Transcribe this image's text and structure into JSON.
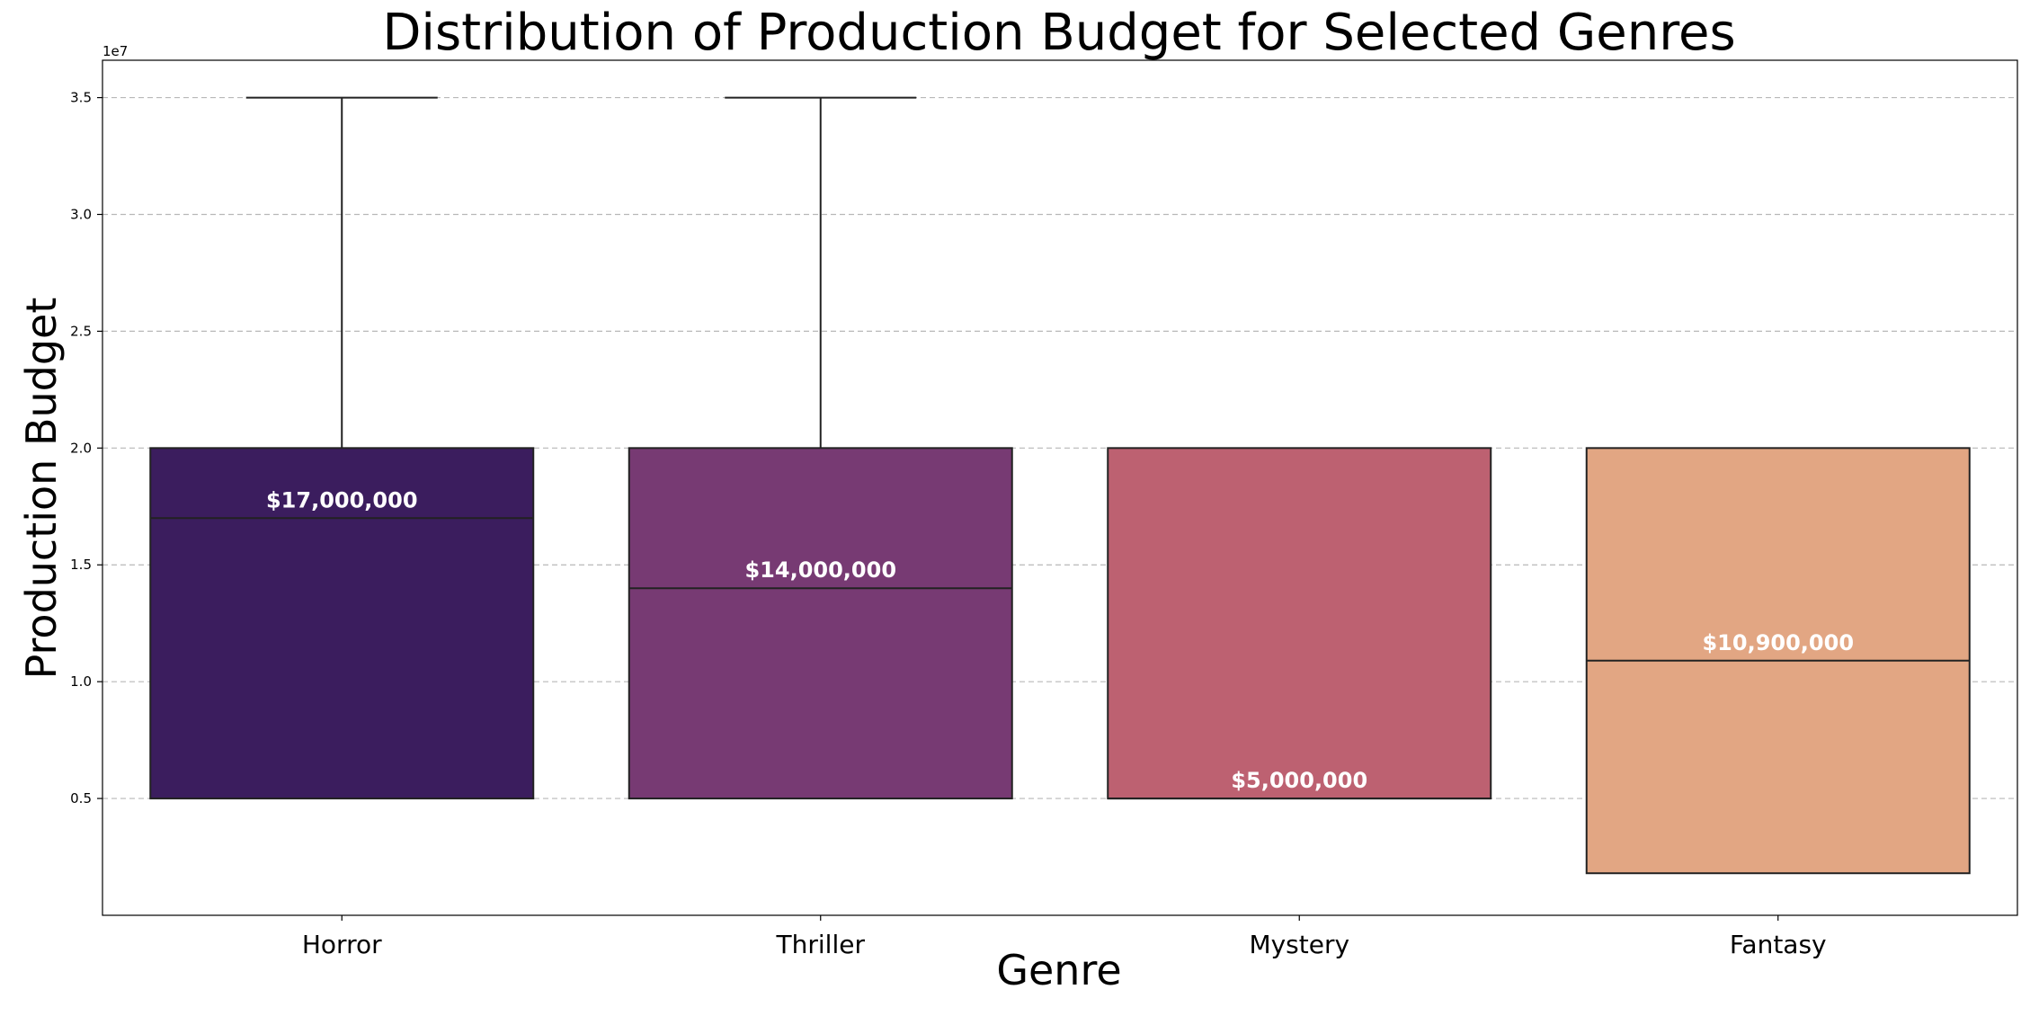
{
  "chart_data": {
    "type": "box",
    "title": "Distribution of Production Budget for Selected Genres",
    "xlabel": "Genre",
    "ylabel": "Production Budget",
    "y_offset_text": "1e7",
    "ylim": [
      0,
      36600000
    ],
    "y_ticks": [
      5000000,
      10000000,
      15000000,
      20000000,
      25000000,
      30000000,
      35000000
    ],
    "y_tick_labels": [
      "0.5",
      "1.0",
      "1.5",
      "2.0",
      "2.5",
      "3.0",
      "3.5"
    ],
    "grid": true,
    "categories": [
      "Horror",
      "Thriller",
      "Mystery",
      "Fantasy"
    ],
    "boxes": [
      {
        "category": "Horror",
        "q1": 5000000,
        "median": 17000000,
        "q3": 20000000,
        "whisker_low": 5000000,
        "whisker_high": 35000000,
        "label": "$17,000,000",
        "color": "#3b1d5e"
      },
      {
        "category": "Thriller",
        "q1": 5000000,
        "median": 14000000,
        "q3": 20000000,
        "whisker_low": 5000000,
        "whisker_high": 35000000,
        "label": "$14,000,000",
        "color": "#773a73"
      },
      {
        "category": "Mystery",
        "q1": 5000000,
        "median": 5000000,
        "q3": 20000000,
        "whisker_low": 5000000,
        "whisker_high": 20000000,
        "label": "$5,000,000",
        "color": "#bd6171"
      },
      {
        "category": "Fantasy",
        "q1": 1800000,
        "median": 10900000,
        "q3": 20000000,
        "whisker_low": 1800000,
        "whisker_high": 20000000,
        "label": "$10,900,000",
        "color": "#e2a683"
      }
    ]
  }
}
